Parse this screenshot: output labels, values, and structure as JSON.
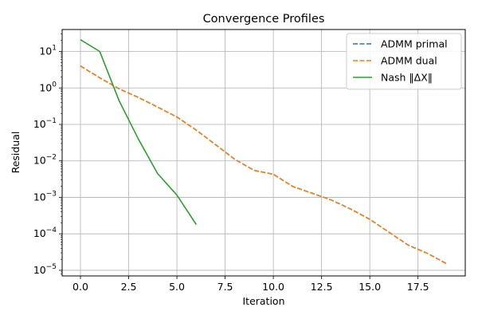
{
  "chart_data": {
    "type": "line",
    "title": "Convergence Profiles",
    "xlabel": "Iteration",
    "ylabel": "Residual",
    "xlim": [
      -0.95,
      19.95
    ],
    "ylim": [
      7e-06,
      40
    ],
    "yscale": "log",
    "grid": true,
    "legend_position": "top-right",
    "x_ticks": [
      0.0,
      2.5,
      5.0,
      7.5,
      10.0,
      12.5,
      15.0,
      17.5
    ],
    "x_tick_labels": [
      "0.0",
      "2.5",
      "5.0",
      "7.5",
      "10.0",
      "12.5",
      "15.0",
      "17.5"
    ],
    "y_tick_exponents": [
      1,
      0,
      -1,
      -2,
      -3,
      -4,
      -5
    ],
    "series": [
      {
        "name": "ADMM primal",
        "color": "#1f77b4",
        "dash": "dashed",
        "x": [
          0,
          1,
          2,
          3,
          4,
          5,
          6,
          7,
          8,
          9,
          10,
          11,
          12,
          13,
          14,
          15,
          16,
          17,
          18,
          19
        ],
        "y": [
          4.0,
          1.9,
          0.95,
          0.55,
          0.3,
          0.16,
          0.07,
          0.028,
          0.011,
          0.0055,
          0.0043,
          0.002,
          0.0013,
          0.00085,
          0.00048,
          0.00025,
          0.00011,
          4.9e-05,
          2.9e-05,
          1.5e-05
        ]
      },
      {
        "name": "ADMM dual",
        "color": "#ff7f0e",
        "dash": "dashed",
        "x": [
          0,
          1,
          2,
          3,
          4,
          5,
          6,
          7,
          8,
          9,
          10,
          11,
          12,
          13,
          14,
          15,
          16,
          17,
          18,
          19
        ],
        "y": [
          4.0,
          1.9,
          0.95,
          0.55,
          0.3,
          0.16,
          0.07,
          0.028,
          0.011,
          0.0055,
          0.0043,
          0.002,
          0.0013,
          0.00085,
          0.00048,
          0.00025,
          0.00011,
          4.9e-05,
          2.9e-05,
          1.5e-05
        ]
      },
      {
        "name": "Nash ‖ΔX‖",
        "color": "#2ca02c",
        "dash": "solid",
        "x": [
          0,
          1,
          2,
          3,
          4,
          5,
          6
        ],
        "y": [
          21,
          10,
          0.45,
          0.04,
          0.0045,
          0.00115,
          0.00018
        ]
      }
    ]
  }
}
